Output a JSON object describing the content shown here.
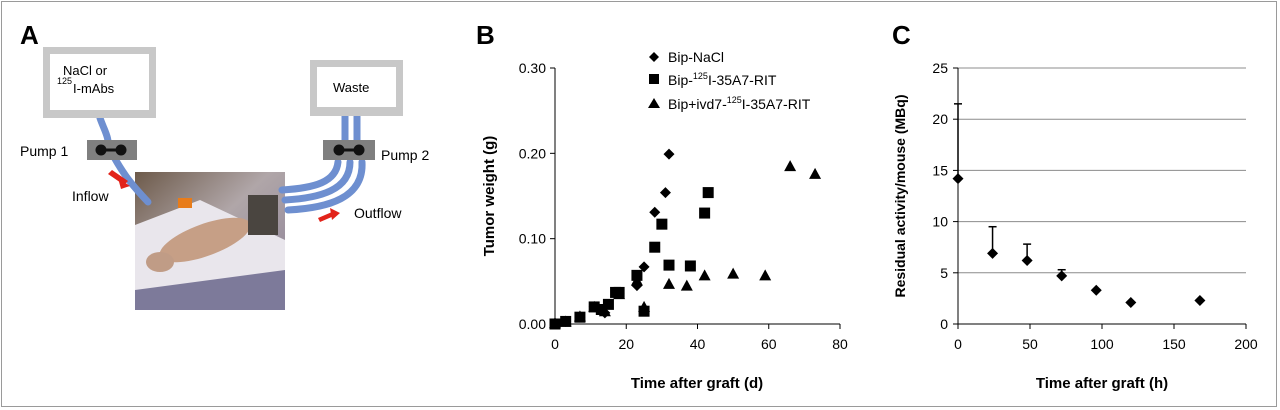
{
  "panel_a": {
    "letter": "A",
    "reservoir_left_line1": "NaCl or",
    "reservoir_left_sup": "125",
    "reservoir_left_line2": "I-mAbs",
    "reservoir_right": "Waste",
    "pump1": "Pump 1",
    "pump2": "Pump 2",
    "inflow": "Inflow",
    "outflow": "Outflow",
    "colors": {
      "tube": "#6e8fd0",
      "arrow": "#e2231a",
      "pump": "#7f7f7f",
      "box": "#c8c8c8"
    }
  },
  "panel_b_letter": "B",
  "panel_c_letter": "C",
  "chart_data": [
    {
      "panel": "B",
      "type": "scatter",
      "xlabel": "Time after graft (d)",
      "ylabel": "Tumor weight (g)",
      "xlim": [
        0,
        80
      ],
      "ylim": [
        0,
        0.3
      ],
      "xticks": [
        "0",
        "20",
        "40",
        "60",
        "80"
      ],
      "yticks": [
        "0.00",
        "0.10",
        "0.20",
        "0.30"
      ],
      "grid": false,
      "legend_position": "top-right",
      "series": [
        {
          "name": "Bip-NaCl",
          "marker": "diamond",
          "x": [
            0,
            3,
            7,
            11,
            14,
            18,
            23,
            25,
            28,
            31,
            32
          ],
          "y": [
            0.001,
            0.003,
            0.008,
            0.02,
            0.013,
            0.036,
            0.045,
            0.067,
            0.131,
            0.154,
            0.199
          ]
        },
        {
          "name_prefix": "Bip-",
          "name_sup": "125",
          "name_suffix": "I-35A7-RIT",
          "marker": "square",
          "x": [
            0,
            3,
            7,
            11,
            13,
            15,
            17,
            18,
            23,
            25,
            28,
            30,
            32,
            38,
            42,
            43
          ],
          "y": [
            0.0,
            0.003,
            0.008,
            0.02,
            0.017,
            0.023,
            0.037,
            0.037,
            0.057,
            0.015,
            0.09,
            0.117,
            0.069,
            0.068,
            0.13,
            0.154
          ]
        },
        {
          "name_prefix": "Bip+ivd7-",
          "name_sup": "125",
          "name_suffix": "I-35A7-RIT",
          "marker": "triangle",
          "x": [
            0,
            3,
            7,
            11,
            14,
            18,
            23,
            25,
            32,
            37,
            42,
            50,
            59,
            66,
            73
          ],
          "y": [
            0.001,
            0.003,
            0.009,
            0.02,
            0.015,
            0.035,
            0.051,
            0.02,
            0.047,
            0.045,
            0.057,
            0.059,
            0.057,
            0.185,
            0.176
          ]
        }
      ]
    },
    {
      "panel": "C",
      "type": "scatter",
      "xlabel": "Time after graft (h)",
      "ylabel": "Residual activity/mouse (MBq)",
      "xlim": [
        0,
        200
      ],
      "ylim": [
        0,
        25
      ],
      "xticks": [
        "0",
        "50",
        "100",
        "150",
        "200"
      ],
      "yticks": [
        "0",
        "5",
        "10",
        "15",
        "20",
        "25"
      ],
      "grid": true,
      "error_bars": "upper only",
      "series": [
        {
          "marker": "diamond",
          "x": [
            0,
            24,
            48,
            72,
            96,
            120,
            168
          ],
          "y": [
            14.2,
            6.9,
            6.2,
            4.7,
            3.3,
            2.1,
            2.3
          ],
          "error_upper": [
            7.3,
            2.6,
            1.6,
            0.6,
            0,
            0,
            0
          ]
        }
      ]
    }
  ]
}
